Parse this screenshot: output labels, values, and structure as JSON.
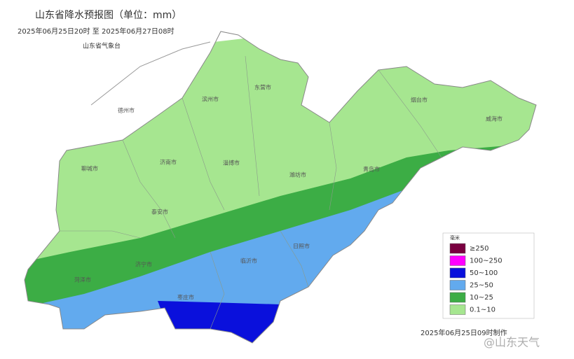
{
  "title": "山东省降水预报图（单位：mm）",
  "period": "2025年06月25日20时 至 2025年06月27日08时",
  "issuer": "山东省气象台",
  "cities": [
    {
      "label": "德州市"
    },
    {
      "label": "滨州市"
    },
    {
      "label": "东营市"
    },
    {
      "label": "烟台市"
    },
    {
      "label": "威海市"
    },
    {
      "label": "聊城市"
    },
    {
      "label": "济南市"
    },
    {
      "label": "淄博市"
    },
    {
      "label": "潍坊市"
    },
    {
      "label": "青岛市"
    },
    {
      "label": "泰安市"
    },
    {
      "label": "济宁市"
    },
    {
      "label": "菏泽市"
    },
    {
      "label": "临沂市"
    },
    {
      "label": "日照市"
    },
    {
      "label": "枣庄市"
    }
  ],
  "legend": {
    "unit": "毫米",
    "items": [
      {
        "label": "≥250",
        "color": "#7a0040"
      },
      {
        "label": "100~250",
        "color": "#ff00ff"
      },
      {
        "label": "50~100",
        "color": "#0a10dc"
      },
      {
        "label": "25~50",
        "color": "#62aaee"
      },
      {
        "label": "10~25",
        "color": "#3cad45"
      },
      {
        "label": "0.1~10",
        "color": "#a6e690"
      }
    ]
  },
  "footer": "2025年06月25日09时制作",
  "watermark": "@山东天气"
}
